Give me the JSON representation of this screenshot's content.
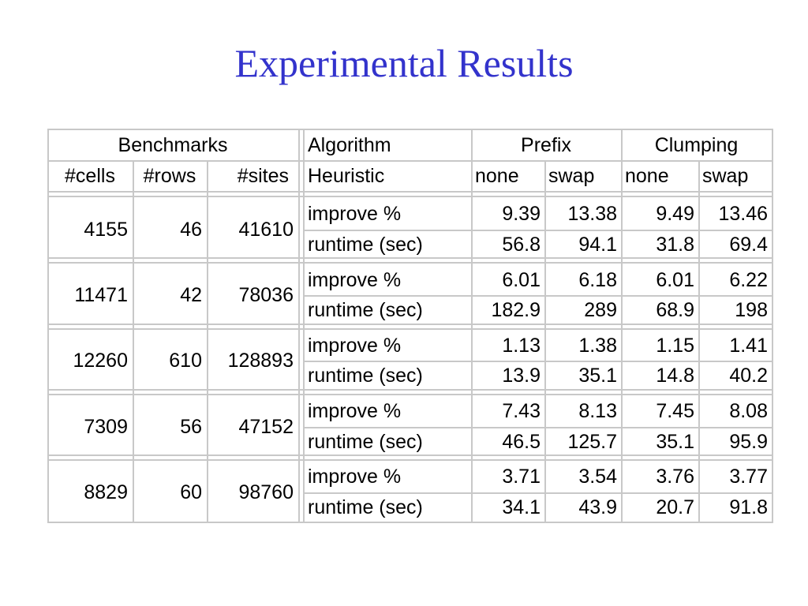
{
  "title": "Experimental Results",
  "header": {
    "benchmarks": "Benchmarks",
    "algorithm": "Algorithm",
    "prefix": "Prefix",
    "clumping": "Clumping",
    "cells": "#cells",
    "rows": "#rows",
    "sites": "#sites",
    "heuristic": "Heuristic",
    "prefix_none": "none",
    "prefix_swap": "swap",
    "clumping_none": "none",
    "clumping_swap": "swap"
  },
  "benchmarks": [
    {
      "cells": "4155",
      "rows": "46",
      "sites": "41610",
      "improve_label": "improve %",
      "runtime_label": "runtime (sec)",
      "improve": [
        "9.39",
        "13.38",
        "9.49",
        "13.46"
      ],
      "runtime": [
        "56.8",
        "94.1",
        "31.8",
        "69.4"
      ]
    },
    {
      "cells": "11471",
      "rows": "42",
      "sites": "78036",
      "improve_label": "improve %",
      "runtime_label": "runtime (sec)",
      "improve": [
        "6.01",
        "6.18",
        "6.01",
        "6.22"
      ],
      "runtime": [
        "182.9",
        "289",
        "68.9",
        "198"
      ]
    },
    {
      "cells": "12260",
      "rows": "610",
      "sites": "128893",
      "improve_label": "improve %",
      "runtime_label": "runtime (sec)",
      "improve": [
        "1.13",
        "1.38",
        "1.15",
        "1.41"
      ],
      "runtime": [
        "13.9",
        "35.1",
        "14.8",
        "40.2"
      ]
    },
    {
      "cells": "7309",
      "rows": "56",
      "sites": "47152",
      "improve_label": "improve %",
      "runtime_label": "runtime (sec)",
      "improve": [
        "7.43",
        "8.13",
        "7.45",
        "8.08"
      ],
      "runtime": [
        "46.5",
        "125.7",
        "35.1",
        "95.9"
      ]
    },
    {
      "cells": "8829",
      "rows": "60",
      "sites": "98760",
      "improve_label": "improve %",
      "runtime_label": "runtime (sec)",
      "improve": [
        "3.71",
        "3.54",
        "3.76",
        "3.77"
      ],
      "runtime": [
        "34.1",
        "43.9",
        "20.7",
        "91.8"
      ]
    }
  ]
}
